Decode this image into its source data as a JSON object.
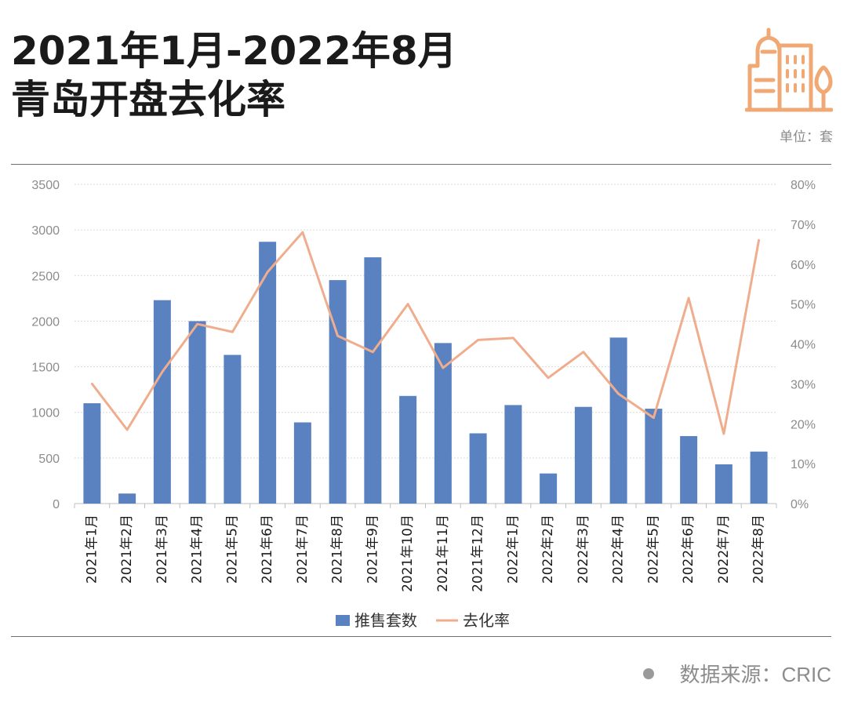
{
  "header": {
    "title_line1": "2021年1月-2022年8月",
    "title_line2": "青岛开盘去化率",
    "unit": "单位：套",
    "icon": "building-icon",
    "icon_color": "#f0a974"
  },
  "footer": {
    "source": "数据来源：CRIC"
  },
  "colors": {
    "bar": "#5b82c0",
    "line": "#f0ad8e",
    "axis_text": "#8c8c8c",
    "grid": "#d9d9d9"
  },
  "chart_data": {
    "type": "bar",
    "categories": [
      "2021年1月",
      "2021年2月",
      "2021年3月",
      "2021年4月",
      "2021年5月",
      "2021年6月",
      "2021年7月",
      "2021年8月",
      "2021年9月",
      "2021年10月",
      "2021年11月",
      "2021年12月",
      "2022年1月",
      "2022年2月",
      "2022年3月",
      "2022年4月",
      "2022年5月",
      "2022年6月",
      "2022年7月",
      "2022年8月"
    ],
    "series": [
      {
        "name": "推售套数",
        "type": "bar",
        "axis": "left",
        "values": [
          1100,
          110,
          2230,
          2000,
          1630,
          2870,
          890,
          2450,
          2700,
          1180,
          1760,
          770,
          1080,
          330,
          1060,
          1820,
          1040,
          740,
          430,
          570
        ]
      },
      {
        "name": "去化率",
        "type": "line",
        "axis": "right",
        "values": [
          30,
          18.5,
          33,
          45,
          43,
          58,
          68,
          42,
          38,
          50,
          34,
          41,
          41.5,
          31.5,
          38,
          27.5,
          21.5,
          51.5,
          17.5,
          66
        ]
      }
    ],
    "y_left": {
      "ylim": [
        0,
        3500
      ],
      "ticks": [
        "0",
        "500",
        "1000",
        "1500",
        "2000",
        "2500",
        "3000",
        "3500"
      ]
    },
    "y_right": {
      "ylim": [
        0,
        80
      ],
      "ticks": [
        "0%",
        "10%",
        "20%",
        "30%",
        "40%",
        "50%",
        "60%",
        "70%",
        "80%"
      ]
    },
    "legend": {
      "position": "bottom",
      "entries": [
        "推售套数",
        "去化率"
      ]
    },
    "grid": true
  }
}
